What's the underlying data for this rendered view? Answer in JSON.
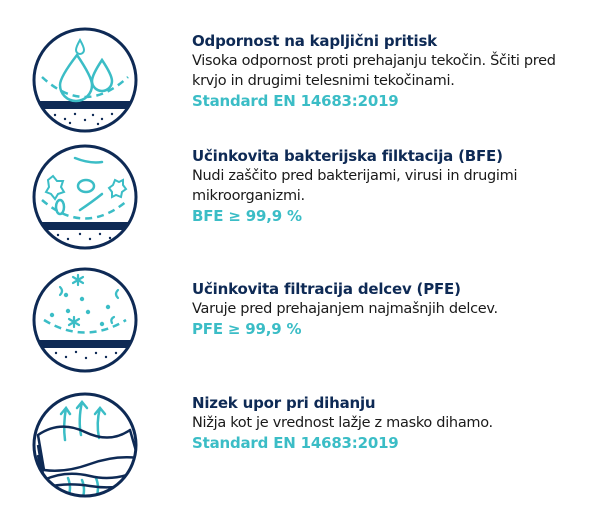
{
  "colors": {
    "navy": "#0e2a55",
    "teal": "#3bbdc6"
  },
  "features": [
    {
      "icon": "droplets-icon",
      "title": "Odpornost na kapljični pritisk",
      "description": "Visoka odpornost proti prehajanju tekočin. Ščiti pred krvjo in drugimi telesnimi tekočinami.",
      "standard": "Standard EN 14683:2019"
    },
    {
      "icon": "bacteria-icon",
      "title": "Učinkovita bakterijska filktacija (BFE)",
      "description": "Nudi zaščito pred bakterijami, virusi in drugimi mikroorganizmi.",
      "standard": "BFE ≥ 99,9 %"
    },
    {
      "icon": "particles-icon",
      "title": "Učinkovita filtracija delcev (PFE)",
      "description": "Varuje pred prehajanjem najmašnjih delcev.",
      "standard": "PFE ≥ 99,9 %"
    },
    {
      "icon": "breathing-layers-icon",
      "title": "Nizek upor pri dihanju",
      "description": "Nižja kot je vrednost lažje z masko dihamo.",
      "standard": "Standard EN 14683:2019"
    }
  ]
}
